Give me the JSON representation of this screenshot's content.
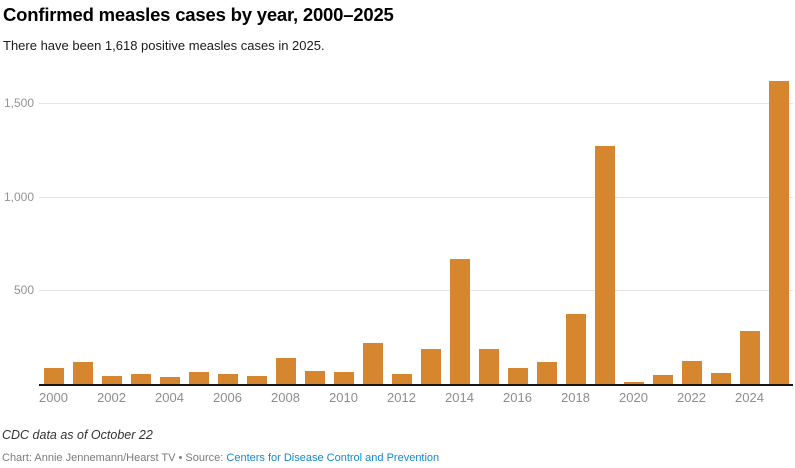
{
  "header": {
    "title": "Confirmed measles cases by year, 2000–2025",
    "subtitle": "There have been 1,618 positive measles cases in 2025."
  },
  "chart_data": {
    "type": "bar",
    "title": "Confirmed measles cases by year, 2000–2025",
    "subtitle": "There have been 1,618 positive measles cases in 2025.",
    "categories": [
      2000,
      2001,
      2002,
      2003,
      2004,
      2005,
      2006,
      2007,
      2008,
      2009,
      2010,
      2011,
      2012,
      2013,
      2014,
      2015,
      2016,
      2017,
      2018,
      2019,
      2020,
      2021,
      2022,
      2023,
      2024,
      2025
    ],
    "values": [
      86,
      116,
      44,
      56,
      37,
      66,
      55,
      43,
      140,
      71,
      63,
      220,
      55,
      187,
      667,
      188,
      86,
      120,
      375,
      1274,
      13,
      49,
      121,
      59,
      285,
      1618
    ],
    "xlabel": "",
    "ylabel": "",
    "ylim": [
      0,
      1684
    ],
    "yticks": [
      500,
      1000,
      1500
    ],
    "ytick_labels": [
      "500",
      "1,000",
      "1,500"
    ],
    "xtick_labels": [
      "2000",
      "2002",
      "2004",
      "2006",
      "2008",
      "2010",
      "2012",
      "2014",
      "2016",
      "2018",
      "2020",
      "2022",
      "2024"
    ],
    "grid": true,
    "legend": "none",
    "bar_color": "#d6862e"
  },
  "colors": {
    "bar": "#d6862e",
    "axis_label": "#8d8d8d",
    "gridline": "#e4e4e4",
    "baseline": "#161616",
    "link": "#1589cb"
  },
  "footer": {
    "note": "CDC data as of October 22",
    "credit_prefix": "Chart: Annie Jennemann/Hearst TV • Source: ",
    "source_link": "Centers for Disease Control and Prevention"
  }
}
